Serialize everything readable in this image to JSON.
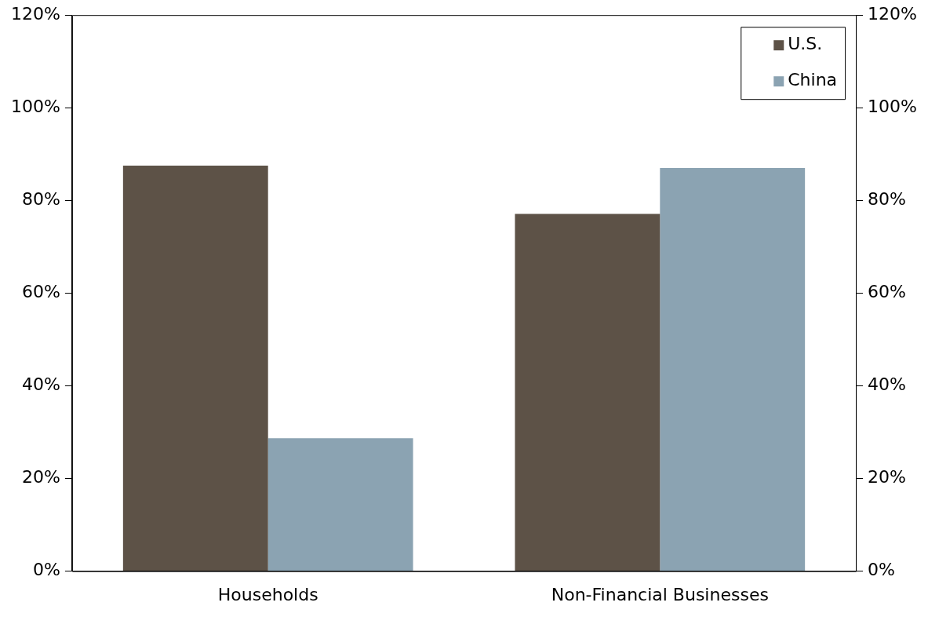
{
  "chart_data": {
    "type": "bar",
    "categories": [
      "Households",
      "Non-Financial Businesses"
    ],
    "series": [
      {
        "name": "U.S.",
        "color": "#5d5247",
        "values": [
          87.5,
          77.1
        ]
      },
      {
        "name": "China",
        "color": "#8ba3b2",
        "values": [
          28.7,
          87.0
        ]
      }
    ],
    "ylim": [
      0,
      120
    ],
    "yticks": [
      {
        "value": 0,
        "label": "0%"
      },
      {
        "value": 20,
        "label": "20%"
      },
      {
        "value": 40,
        "label": "40%"
      },
      {
        "value": 60,
        "label": "60%"
      },
      {
        "value": 80,
        "label": "80%"
      },
      {
        "value": 100,
        "label": "100%"
      },
      {
        "value": 120,
        "label": "120%"
      }
    ],
    "y2lim": [
      0,
      120
    ],
    "y2ticks": [
      {
        "value": 0,
        "label": "0%"
      },
      {
        "value": 20,
        "label": "20%"
      },
      {
        "value": 40,
        "label": "40%"
      },
      {
        "value": 60,
        "label": "60%"
      },
      {
        "value": 80,
        "label": "80%"
      },
      {
        "value": 100,
        "label": "100%"
      },
      {
        "value": 120,
        "label": "120%"
      }
    ],
    "grid": false,
    "legend": "top right"
  }
}
